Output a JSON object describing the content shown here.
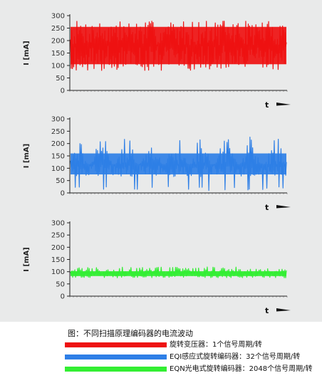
{
  "chart_data": [
    {
      "type": "line",
      "ylabel": "I [mA]",
      "xlabel": "t",
      "ylim": [
        0,
        300
      ],
      "yticks": [
        0,
        50,
        100,
        150,
        200,
        250,
        300
      ],
      "series": [
        {
          "color": "#ee1111",
          "low": 80,
          "high": 280,
          "center": 180,
          "samples": 340,
          "seed": 7
        }
      ]
    },
    {
      "type": "line",
      "ylabel": "I [mA]",
      "xlabel": "t",
      "ylim": [
        0,
        300
      ],
      "yticks": [
        0,
        50,
        100,
        150,
        200,
        250,
        300
      ],
      "series": [
        {
          "color": "#2e7fe6",
          "low": 10,
          "high": 240,
          "center": 115,
          "samples": 320,
          "seed": 21
        }
      ]
    },
    {
      "type": "line",
      "ylabel": "I [mA]",
      "xlabel": "t",
      "ylim": [
        0,
        300
      ],
      "yticks": [
        0,
        50,
        100,
        150,
        200,
        250,
        300
      ],
      "series": [
        {
          "color": "#33ee33",
          "low": 75,
          "high": 120,
          "center": 92,
          "samples": 300,
          "seed": 33
        }
      ]
    }
  ],
  "caption": {
    "title": "图：不同扫描原理编码器的电流波动",
    "legend": [
      {
        "label": "旋转变压器：1个信号周期/转",
        "color": "#ee1111"
      },
      {
        "label": "EQI感应式旋转编码器：32个信号周期/转",
        "color": "#2e7fe6"
      },
      {
        "label": "EQN光电式旋转编码器：2048个信号周期/转",
        "color": "#33ee33"
      }
    ]
  }
}
